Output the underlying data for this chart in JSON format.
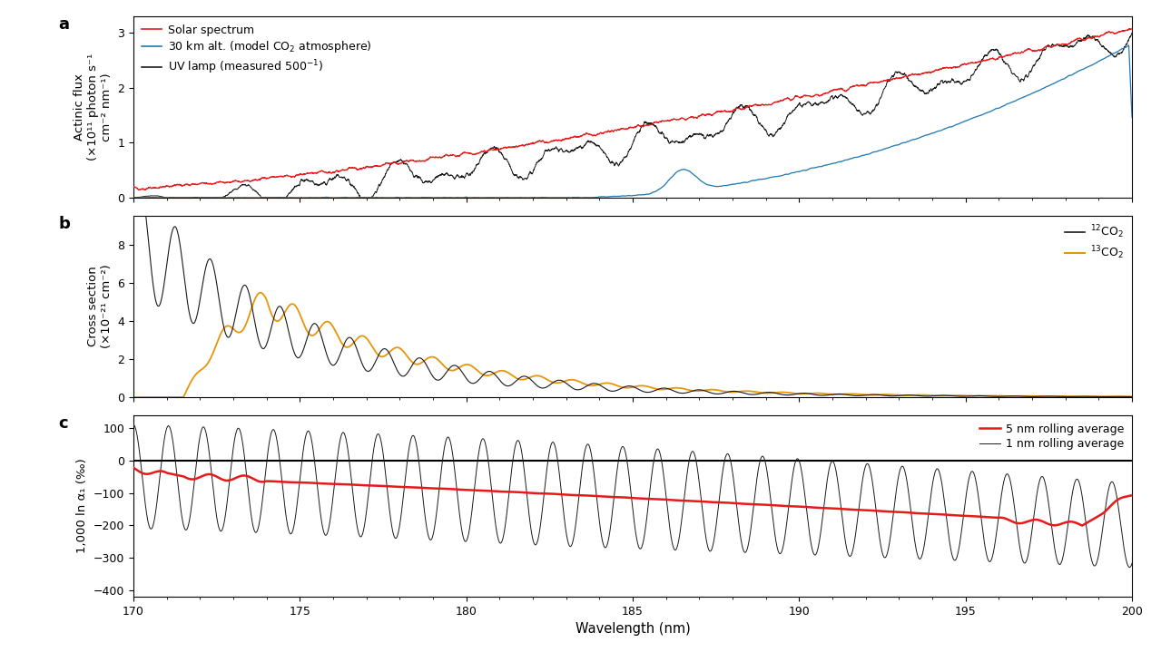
{
  "wavelength_range": [
    170,
    200
  ],
  "panel_a": {
    "ylabel": "Actinic flux\n(×10¹¹ photon s⁻¹\ncm⁻² nm⁻¹)",
    "ylim": [
      0,
      3.3
    ],
    "yticks": [
      0,
      1,
      2,
      3
    ],
    "legend_colors": [
      "#e8191a",
      "#1f78b4",
      "#1a1a1a"
    ]
  },
  "panel_b": {
    "ylabel": "Cross section\n(×10⁻²¹ cm⁻²)",
    "ylim": [
      0,
      9.5
    ],
    "yticks": [
      0,
      2,
      4,
      6,
      8
    ],
    "legend_colors": [
      "#1a1a1a",
      "#e8950a"
    ]
  },
  "panel_c": {
    "ylabel": "1,000 ln α₁ (‰)",
    "ylim": [
      -420,
      140
    ],
    "yticks": [
      -400,
      -300,
      -200,
      -100,
      0,
      100
    ],
    "xlabel": "Wavelength (nm)",
    "legend_colors": [
      "#e8191a",
      "#1a1a1a"
    ]
  },
  "background_color": "#ffffff",
  "panel_label_fontsize": 13,
  "axis_fontsize": 9.5,
  "legend_fontsize": 9,
  "tick_fontsize": 9,
  "xticks": [
    170,
    175,
    180,
    185,
    190,
    195,
    200
  ]
}
